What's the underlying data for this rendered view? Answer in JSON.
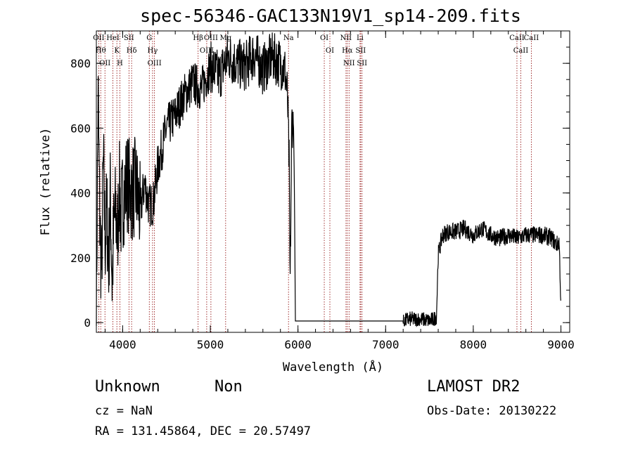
{
  "chart_data": {
    "type": "line",
    "title": "spec-56346-GAC133N19V1_sp14-209.fits",
    "xlabel": "Wavelength (Å)",
    "ylabel": "Flux (relative)",
    "xlim": [
      3700,
      9100
    ],
    "ylim": [
      -30,
      900
    ],
    "xticks": [
      4000,
      5000,
      6000,
      7000,
      8000,
      9000
    ],
    "yticks": [
      0,
      200,
      400,
      600,
      800
    ],
    "x": [
      3700,
      3720,
      3740,
      3760,
      3780,
      3800,
      3820,
      3840,
      3860,
      3880,
      3900,
      3920,
      3940,
      3960,
      3980,
      4000,
      4050,
      4100,
      4150,
      4200,
      4250,
      4300,
      4350,
      4400,
      4450,
      4500,
      4600,
      4700,
      4800,
      4900,
      5000,
      5100,
      5200,
      5300,
      5400,
      5500,
      5600,
      5700,
      5800,
      5850,
      5880,
      5900,
      5910,
      5930,
      5950,
      5960,
      5970,
      6000,
      6500,
      7000,
      7200,
      7250,
      7300,
      7400,
      7500,
      7550,
      7580,
      7600,
      7650,
      7700,
      7800,
      7900,
      8000,
      8100,
      8200,
      8300,
      8400,
      8500,
      8600,
      8700,
      8800,
      8900,
      8950,
      8980,
      9000
    ],
    "y": [
      20,
      700,
      300,
      150,
      500,
      250,
      350,
      180,
      400,
      120,
      300,
      350,
      250,
      420,
      330,
      380,
      440,
      400,
      420,
      340,
      430,
      360,
      370,
      480,
      540,
      600,
      640,
      700,
      740,
      720,
      790,
      760,
      820,
      800,
      790,
      830,
      780,
      820,
      800,
      780,
      700,
      480,
      100,
      630,
      600,
      400,
      10,
      5,
      5,
      5,
      0,
      10,
      10,
      10,
      5,
      10,
      20,
      210,
      270,
      280,
      280,
      290,
      270,
      290,
      270,
      260,
      270,
      260,
      270,
      270,
      270,
      260,
      240,
      250,
      50
    ],
    "lines": [
      {
        "wave": 3727,
        "labels": [
          "OII"
        ]
      },
      {
        "wave": 3750,
        "labels": [
          "Hθ"
        ]
      },
      {
        "wave": 3798,
        "labels": [
          "OII"
        ]
      },
      {
        "wave": 3889,
        "labels": [
          "HeI"
        ]
      },
      {
        "wave": 3934,
        "labels": [
          "K"
        ]
      },
      {
        "wave": 3969,
        "labels": [
          "H"
        ]
      },
      {
        "wave": 4072,
        "labels": [
          "SII"
        ]
      },
      {
        "wave": 4102,
        "labels": [
          "Hδ"
        ]
      },
      {
        "wave": 4304,
        "labels": [
          "G"
        ]
      },
      {
        "wave": 4341,
        "labels": [
          "Hγ"
        ]
      },
      {
        "wave": 4363,
        "labels": [
          "OIII"
        ]
      },
      {
        "wave": 4861,
        "labels": [
          "Hβ"
        ]
      },
      {
        "wave": 4959,
        "labels": [
          "OIII"
        ]
      },
      {
        "wave": 5007,
        "labels": [
          "OIII"
        ]
      },
      {
        "wave": 5175,
        "labels": [
          "Mg"
        ]
      },
      {
        "wave": 5892,
        "labels": [
          "Na"
        ]
      },
      {
        "wave": 6300,
        "labels": [
          "OI"
        ]
      },
      {
        "wave": 6364,
        "labels": [
          "OI"
        ]
      },
      {
        "wave": 6548,
        "labels": [
          "NII"
        ]
      },
      {
        "wave": 6563,
        "labels": [
          "Hα"
        ]
      },
      {
        "wave": 6583,
        "labels": [
          "NII"
        ]
      },
      {
        "wave": 6708,
        "labels": [
          "Li"
        ]
      },
      {
        "wave": 6716,
        "labels": [
          "SII"
        ]
      },
      {
        "wave": 6731,
        "labels": [
          "SII"
        ]
      },
      {
        "wave": 8498,
        "labels": [
          "CaII"
        ]
      },
      {
        "wave": 8542,
        "labels": [
          "CaII"
        ]
      },
      {
        "wave": 8662,
        "labels": [
          "CaII"
        ]
      }
    ],
    "line_color": "#000000",
    "marker_color": "#8b0000"
  },
  "info": {
    "classification": "Unknown",
    "subclass": "Non",
    "survey": "LAMOST DR2",
    "cz": "cz = NaN",
    "obs_date": "Obs-Date: 20130222",
    "radec": "RA = 131.45864, DEC =  20.57497"
  }
}
